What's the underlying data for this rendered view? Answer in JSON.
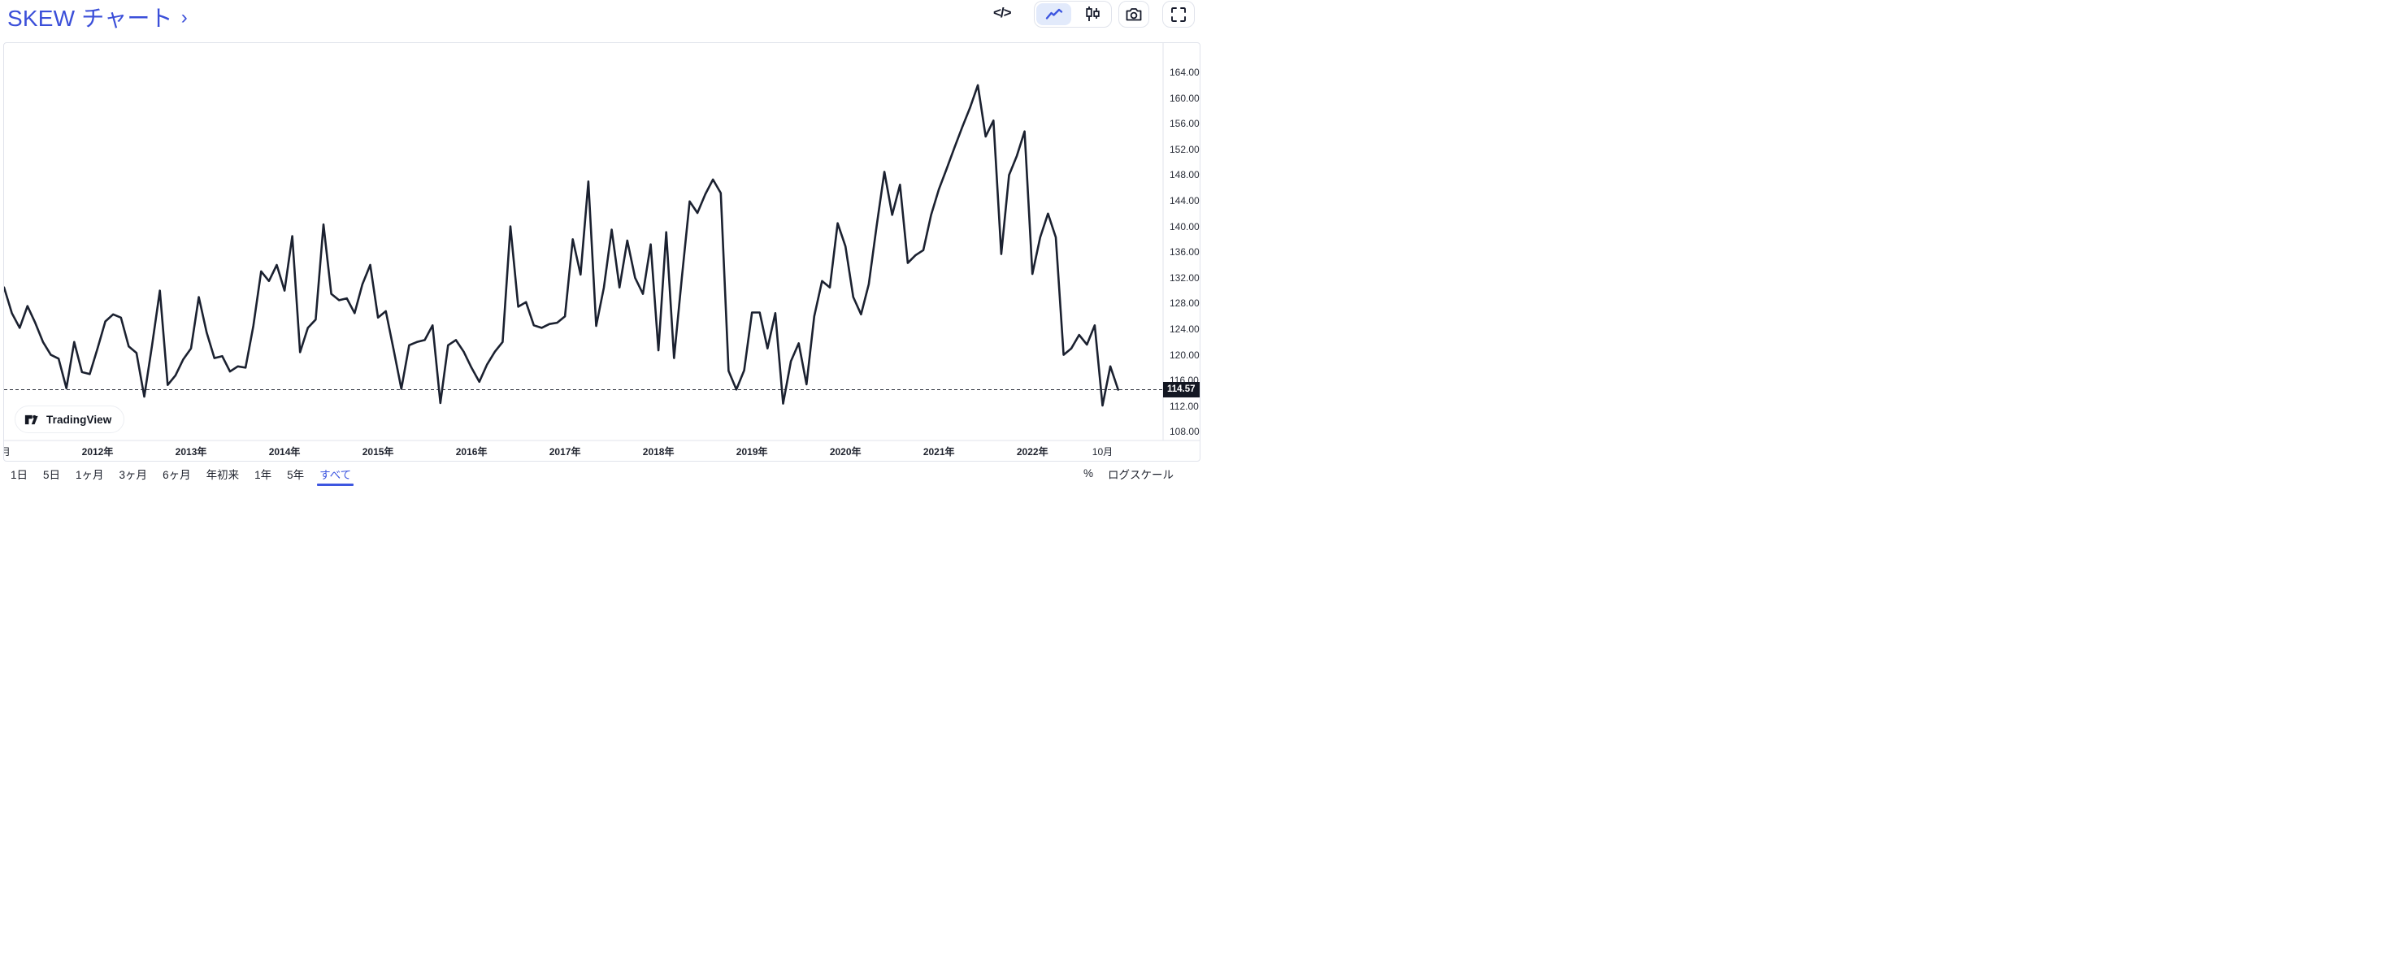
{
  "header": {
    "title": "SKEW チャート",
    "chevron": "›"
  },
  "toolbar": {
    "embed_label": "</>",
    "icons": [
      {
        "name": "embed-code-icon",
        "glyph": "</>"
      },
      {
        "name": "line-chart-icon",
        "selected": true
      },
      {
        "name": "candlestick-icon",
        "selected": false
      },
      {
        "name": "camera-icon",
        "selected": false
      },
      {
        "name": "fullscreen-icon",
        "selected": false
      }
    ]
  },
  "chart": {
    "watermark": "TradingView",
    "current_value": "114.57",
    "colors": {
      "line": "#1b2130",
      "title_blue": "#3b4fd9",
      "accent_blue": "#3d56e0",
      "border": "#e0e3eb",
      "label_bg": "#131722",
      "axis_text": "#2a2e39"
    }
  },
  "chart_data": {
    "type": "line",
    "title": "SKEW",
    "frequency": "monthly",
    "start": "2011-01",
    "end": "2022-12",
    "current_value": 114.57,
    "grid": false,
    "legend_position": "none",
    "y_axis_range": [
      106.5,
      169.0
    ],
    "y_ticks": [
      "164.00",
      "160.00",
      "156.00",
      "152.00",
      "148.00",
      "144.00",
      "140.00",
      "136.00",
      "132.00",
      "128.00",
      "124.00",
      "120.00",
      "116.00",
      "112.00",
      "108.00"
    ],
    "x_ticks": [
      {
        "label": "月",
        "month_index": 0.2
      },
      {
        "label": "2012年",
        "month_index": 12
      },
      {
        "label": "2013年",
        "month_index": 24
      },
      {
        "label": "2014年",
        "month_index": 36
      },
      {
        "label": "2015年",
        "month_index": 48
      },
      {
        "label": "2016年",
        "month_index": 60
      },
      {
        "label": "2017年",
        "month_index": 72
      },
      {
        "label": "2018年",
        "month_index": 84
      },
      {
        "label": "2019年",
        "month_index": 96
      },
      {
        "label": "2020年",
        "month_index": 108
      },
      {
        "label": "2021年",
        "month_index": 120
      },
      {
        "label": "2022年",
        "month_index": 132
      },
      {
        "label": "10月",
        "month_index": 141
      }
    ],
    "values": [
      130.5,
      126.5,
      124.2,
      127.6,
      125.0,
      122.0,
      120.0,
      119.4,
      114.8,
      122.0,
      117.3,
      117.0,
      121.0,
      125.2,
      126.3,
      125.8,
      121.3,
      120.3,
      113.5,
      121.5,
      130.0,
      115.3,
      116.8,
      119.3,
      121.0,
      129.0,
      123.5,
      119.5,
      119.8,
      117.4,
      118.2,
      118.0,
      124.5,
      133.0,
      131.5,
      134.0,
      130.0,
      138.5,
      120.4,
      124.2,
      125.5,
      140.3,
      129.5,
      128.5,
      128.8,
      126.5,
      131.0,
      134.0,
      125.8,
      126.8,
      120.8,
      114.7,
      121.5,
      122.0,
      122.3,
      124.6,
      112.5,
      121.5,
      122.3,
      120.5,
      118.0,
      115.8,
      118.5,
      120.5,
      122.0,
      140.0,
      127.5,
      128.2,
      124.6,
      124.2,
      124.8,
      125.0,
      126.0,
      138.0,
      132.5,
      147.0,
      124.5,
      130.5,
      139.5,
      130.5,
      137.8,
      132.0,
      129.5,
      137.2,
      120.7,
      139.1,
      119.5,
      132.0,
      143.9,
      142.1,
      145.0,
      147.3,
      145.2,
      117.5,
      114.6,
      117.6,
      126.6,
      126.6,
      121.0,
      126.5,
      112.4,
      119.0,
      121.8,
      115.4,
      126.0,
      131.5,
      130.5,
      140.5,
      136.9,
      129.0,
      126.3,
      131.0,
      140.0,
      148.5,
      141.8,
      146.5,
      134.3,
      135.5,
      136.3,
      141.8,
      145.8,
      149.0,
      152.3,
      155.5,
      158.5,
      162.0,
      154.0,
      156.5,
      135.7,
      148.0,
      151.0,
      154.8,
      132.6,
      138.3,
      142.0,
      138.3,
      120.0,
      121.0,
      123.1,
      121.6,
      124.6,
      112.1,
      118.2,
      114.57
    ]
  },
  "footer": {
    "ranges": [
      {
        "label": "1日",
        "selected": false
      },
      {
        "label": "5日",
        "selected": false
      },
      {
        "label": "1ヶ月",
        "selected": false
      },
      {
        "label": "3ヶ月",
        "selected": false
      },
      {
        "label": "6ヶ月",
        "selected": false
      },
      {
        "label": "年初来",
        "selected": false
      },
      {
        "label": "1年",
        "selected": false
      },
      {
        "label": "5年",
        "selected": false
      },
      {
        "label": "すべて",
        "selected": true
      }
    ],
    "percent_label": "%",
    "log_label": "ログスケール"
  }
}
